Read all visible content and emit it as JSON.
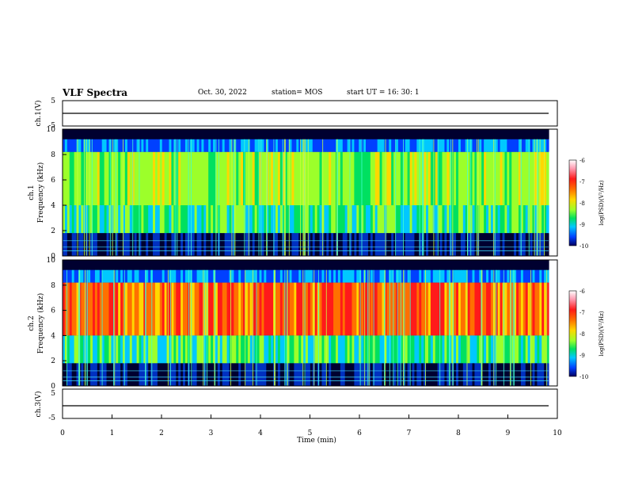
{
  "header": {
    "title": "VLF Spectra",
    "date": "Oct. 30, 2022",
    "station": "station= MOS",
    "start": "start  UT =   16: 30: 1"
  },
  "colorbar_colors": [
    "#ffffff",
    "#ff9ab0",
    "#ff1a1a",
    "#ff7000",
    "#ffd800",
    "#9cff2a",
    "#00e060",
    "#00c8ff",
    "#0040ff",
    "#000060"
  ],
  "chart_data": [
    {
      "type": "line",
      "panel": "ch1-waveform",
      "ylabel": "ch.1(V)",
      "ylim": [
        -5,
        5
      ],
      "yticks": [
        "5",
        "-5"
      ],
      "xlim": [
        0,
        10
      ],
      "series": [
        {
          "values": [
            0,
            0
          ]
        }
      ]
    },
    {
      "type": "heatmap",
      "panel": "ch1-spectrogram",
      "ylabel_top": "ch.1",
      "ylabel": "Frequency (kHz)",
      "ylim": [
        0,
        10
      ],
      "yticks": [
        "0",
        "2",
        "4",
        "6",
        "8",
        "10"
      ],
      "xlim": [
        0,
        9.85
      ],
      "colorbar": {
        "label": "log(PSD)(V²/Hz)",
        "range": [
          -10,
          -6
        ],
        "ticks": [
          "-6",
          "-7",
          "-8",
          "-9",
          "-10"
        ]
      }
    },
    {
      "type": "heatmap",
      "panel": "ch2-spectrogram",
      "ylabel_top": "ch.2",
      "ylabel": "Frequency (kHz)",
      "ylim": [
        0,
        10
      ],
      "yticks": [
        "0",
        "2",
        "4",
        "6",
        "8",
        "10"
      ],
      "xlim": [
        0,
        9.85
      ],
      "colorbar": {
        "label": "log(PSD)(V²/Hz)",
        "range": [
          -10,
          -6
        ],
        "ticks": [
          "-6",
          "-7",
          "-8",
          "-9",
          "-10"
        ]
      }
    },
    {
      "type": "line",
      "panel": "ch3-waveform",
      "ylabel": "ch.3(V)",
      "ylim": [
        -5,
        5
      ],
      "yticks": [
        "5",
        "-5"
      ],
      "xlim": [
        0,
        10
      ],
      "xlabel": "Time  (min)",
      "xticks": [
        "0",
        "1",
        "2",
        "3",
        "4",
        "5",
        "6",
        "7",
        "8",
        "9",
        "10"
      ],
      "series": [
        {
          "values": [
            0,
            0
          ]
        }
      ]
    }
  ]
}
